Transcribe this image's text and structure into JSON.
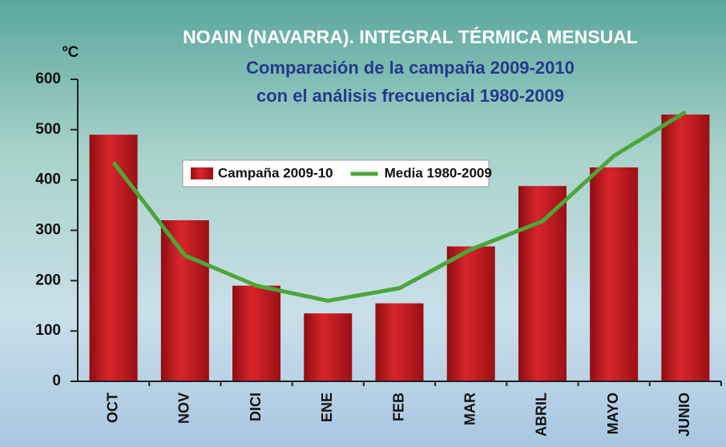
{
  "chart_data": {
    "type": "bar",
    "title": "NOAIN (NAVARRA).  INTEGRAL TÉRMICA MENSUAL",
    "subtitle": [
      "Comparación de la campaña 2009-2010",
      "con el análisis frecuencial 1980-2009"
    ],
    "y_label": "ºC",
    "categories": [
      "OCT",
      "NOV",
      "DICI",
      "ENE",
      "FEB",
      "MAR",
      "ABRIL",
      "MAYO",
      "JUNIO"
    ],
    "series": [
      {
        "name": "Campaña 2009-10",
        "type": "bar",
        "color": "#c4161c",
        "values": [
          490,
          320,
          190,
          135,
          155,
          268,
          388,
          425,
          530
        ]
      },
      {
        "name": "Media 1980-2009",
        "type": "line",
        "color": "#4ea53a",
        "values": [
          435,
          250,
          190,
          160,
          185,
          262,
          318,
          448,
          535
        ]
      }
    ],
    "ylim": [
      0,
      600
    ],
    "yticks": [
      0,
      100,
      200,
      300,
      400,
      500,
      600
    ]
  }
}
